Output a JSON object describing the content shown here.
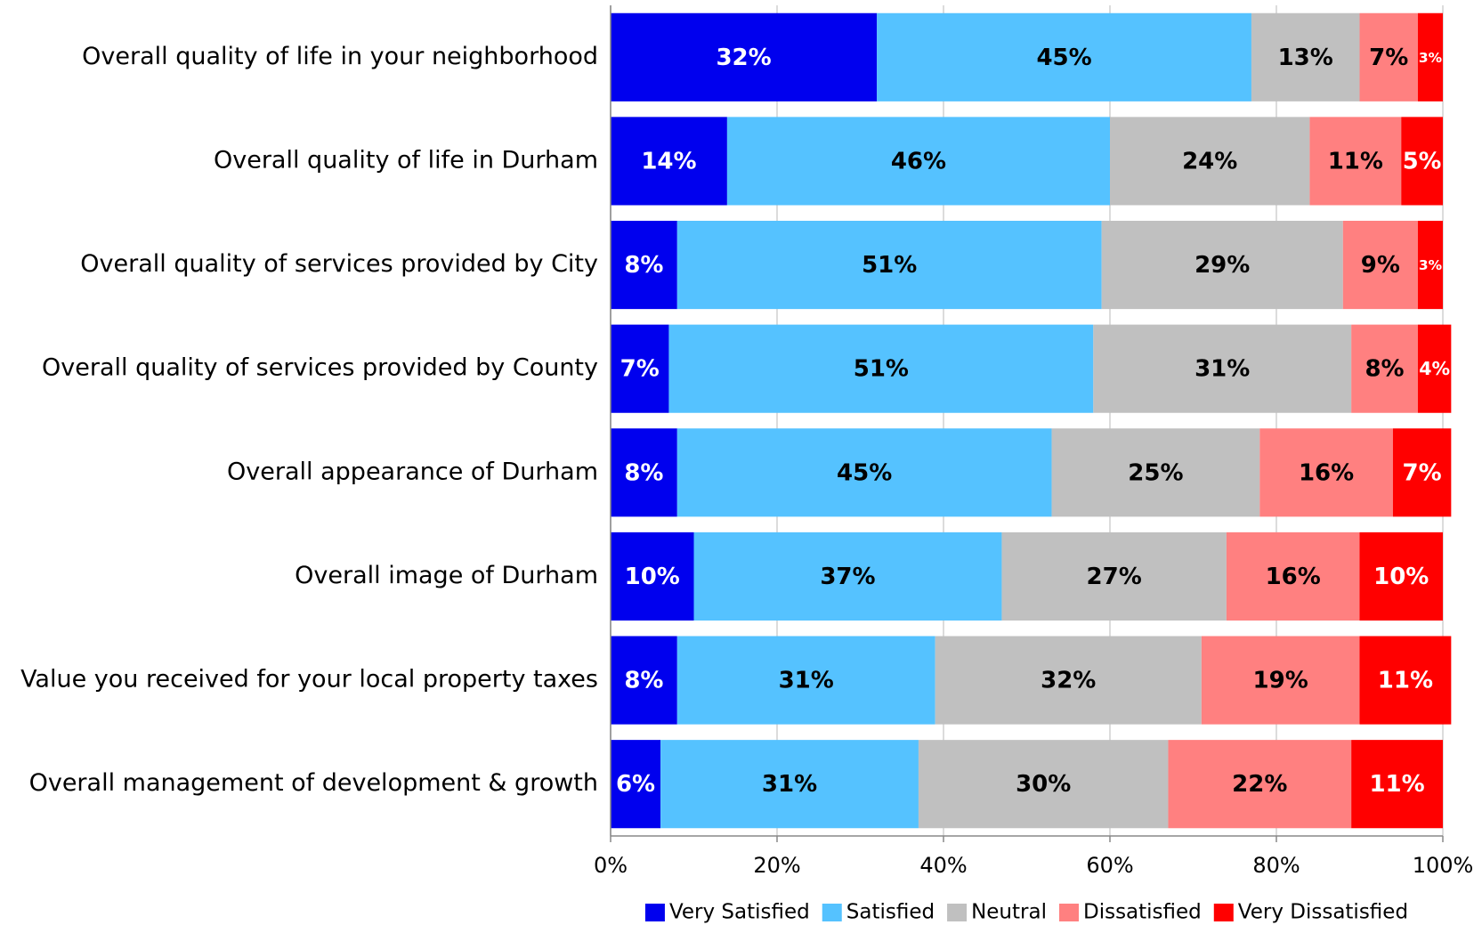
{
  "chart_data": {
    "type": "stacked-bar-horizontal",
    "categories": [
      "Overall quality of life in your neighborhood",
      "Overall quality of life in Durham",
      "Overall quality of services provided by City",
      "Overall quality of services provided by County",
      "Overall appearance of Durham",
      "Overall image of Durham",
      "Value you received for your local property taxes",
      "Overall management of development & growth"
    ],
    "series": [
      {
        "name": "Very Satisfied",
        "color": "#0000ee",
        "label_color": "#ffffff",
        "values": [
          32,
          14,
          8,
          7,
          8,
          10,
          8,
          6
        ],
        "value_labels": [
          "32%",
          "14%",
          "8%",
          "7%",
          "8%",
          "10%",
          "8%",
          "6%"
        ]
      },
      {
        "name": "Satisfied",
        "color": "#55c2ff",
        "label_color": "#000000",
        "values": [
          45,
          46,
          51,
          51,
          45,
          37,
          31,
          31
        ],
        "value_labels": [
          "45%",
          "46%",
          "51%",
          "51%",
          "45%",
          "37%",
          "31%",
          "31%"
        ]
      },
      {
        "name": "Neutral",
        "color": "#c0c0c0",
        "label_color": "#000000",
        "values": [
          13,
          24,
          29,
          31,
          25,
          27,
          32,
          30
        ],
        "value_labels": [
          "13%",
          "24%",
          "29%",
          "31%",
          "25%",
          "27%",
          "32%",
          "30%"
        ]
      },
      {
        "name": "Dissatisfied",
        "color": "#ff8080",
        "label_color": "#000000",
        "values": [
          7,
          11,
          9,
          8,
          16,
          16,
          19,
          22
        ],
        "value_labels": [
          "7%",
          "11%",
          "9%",
          "8%",
          "16%",
          "16%",
          "19%",
          "22%"
        ]
      },
      {
        "name": "Very Dissatisfied",
        "color": "#ff0000",
        "label_color": "#ffffff",
        "values": [
          3,
          5,
          3,
          4,
          7,
          10,
          11,
          11
        ],
        "value_labels": [
          "3%",
          "5%",
          "3%",
          "4%",
          "7%",
          "10%",
          "11%",
          "11%"
        ]
      }
    ],
    "xlim": [
      0,
      100
    ],
    "xticks": [
      {
        "value": 0,
        "label": "0%"
      },
      {
        "value": 20,
        "label": "20%"
      },
      {
        "value": 40,
        "label": "40%"
      },
      {
        "value": 60,
        "label": "60%"
      },
      {
        "value": 80,
        "label": "80%"
      },
      {
        "value": 100,
        "label": "100%"
      }
    ],
    "grid": true,
    "legend": "bottom"
  }
}
